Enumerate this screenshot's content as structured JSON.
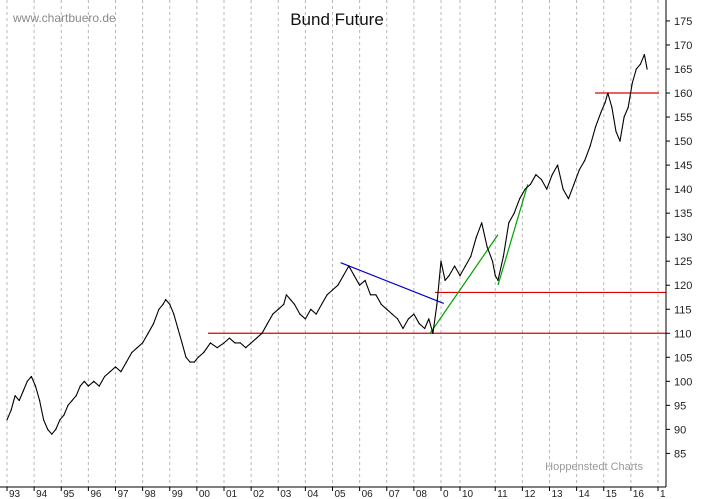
{
  "chart_data": {
    "type": "line",
    "title": "Bund Future",
    "watermark": "www.chartbuero.de",
    "source": "Hoppenstedt Charts",
    "xlabel": "",
    "ylabel": "",
    "xlim": [
      1993.0,
      2017.0
    ],
    "ylim": [
      83,
      178
    ],
    "y_ticks": [
      85,
      90,
      95,
      100,
      105,
      110,
      115,
      120,
      125,
      130,
      135,
      140,
      145,
      150,
      155,
      160,
      165,
      170,
      175
    ],
    "x_ticks": [
      {
        "x": 1993.0,
        "label": "93"
      },
      {
        "x": 1994.0,
        "label": "94"
      },
      {
        "x": 1995.0,
        "label": "95"
      },
      {
        "x": 1996.0,
        "label": "96"
      },
      {
        "x": 1997.0,
        "label": "97"
      },
      {
        "x": 1998.0,
        "label": "98"
      },
      {
        "x": 1999.0,
        "label": "99"
      },
      {
        "x": 2000.0,
        "label": "00"
      },
      {
        "x": 2001.0,
        "label": "01"
      },
      {
        "x": 2002.0,
        "label": "02"
      },
      {
        "x": 2003.0,
        "label": "03"
      },
      {
        "x": 2004.0,
        "label": "04"
      },
      {
        "x": 2005.0,
        "label": "05"
      },
      {
        "x": 2006.0,
        "label": "06"
      },
      {
        "x": 2007.0,
        "label": "07"
      },
      {
        "x": 2008.0,
        "label": "08"
      },
      {
        "x": 2009.0,
        "label": "0"
      },
      {
        "x": 2009.7,
        "label": "10"
      },
      {
        "x": 2011.0,
        "label": "11"
      },
      {
        "x": 2012.0,
        "label": "12"
      },
      {
        "x": 2013.0,
        "label": "13"
      },
      {
        "x": 2014.0,
        "label": "14"
      },
      {
        "x": 2015.0,
        "label": "15"
      },
      {
        "x": 2016.0,
        "label": "16"
      },
      {
        "x": 2017.0,
        "label": "1"
      }
    ],
    "grid": "vertical-dashed",
    "colors": {
      "price": "#000000",
      "support": "#e00000",
      "downtrend": "#0000cc",
      "uptrend": "#00a000",
      "grid": "#b8b8b8"
    },
    "series": [
      {
        "x": [
          1993.0,
          1993.15,
          1993.3,
          1993.45,
          1993.6,
          1993.75,
          1993.9,
          1994.05,
          1994.2,
          1994.35,
          1994.5,
          1994.65,
          1994.8,
          1994.95,
          1995.1,
          1995.25,
          1995.4,
          1995.55,
          1995.7,
          1995.85,
          1996.0,
          1996.2,
          1996.4,
          1996.6,
          1996.8,
          1997.0,
          1997.2,
          1997.4,
          1997.6,
          1997.8,
          1998.0,
          1998.2,
          1998.4,
          1998.6,
          1998.75,
          1998.85,
          1999.0,
          1999.15,
          1999.3,
          1999.45,
          1999.6,
          1999.75,
          1999.9,
          2000.05,
          2000.25,
          2000.5,
          2000.75,
          2001.0,
          2001.2,
          2001.4,
          2001.6,
          2001.8,
          2002.0,
          2002.2,
          2002.4,
          2002.6,
          2002.8,
          2003.0,
          2003.2,
          2003.3,
          2003.45,
          2003.6,
          2003.8,
          2004.0,
          2004.2,
          2004.4,
          2004.6,
          2004.8,
          2005.0,
          2005.2,
          2005.4,
          2005.6,
          2005.8,
          2006.0,
          2006.2,
          2006.4,
          2006.6,
          2006.8,
          2007.0,
          2007.2,
          2007.4,
          2007.6,
          2007.8,
          2008.0,
          2008.2,
          2008.4,
          2008.55,
          2008.7,
          2008.85,
          2009.0,
          2009.15,
          2009.3,
          2009.5,
          2009.7,
          2009.9,
          2010.1,
          2010.3,
          2010.5,
          2010.7,
          2010.9,
          2011.0,
          2011.1,
          2011.3,
          2011.5,
          2011.7,
          2011.9,
          2012.1,
          2012.3,
          2012.5,
          2012.7,
          2012.9,
          2013.1,
          2013.3,
          2013.5,
          2013.7,
          2013.9,
          2014.1,
          2014.3,
          2014.5,
          2014.7,
          2014.9,
          2015.05,
          2015.15,
          2015.3,
          2015.45,
          2015.6,
          2015.75,
          2015.9,
          2016.05,
          2016.2,
          2016.35,
          2016.5,
          2016.6
        ],
        "y": [
          92,
          94,
          97,
          96,
          98,
          100,
          101,
          99,
          96,
          92,
          90,
          89,
          90,
          92,
          93,
          95,
          96,
          97,
          99,
          100,
          99,
          100,
          99,
          101,
          102,
          103,
          102,
          104,
          106,
          107,
          108,
          110,
          112,
          115,
          116,
          117,
          116,
          114,
          111,
          108,
          105,
          104,
          104,
          105,
          106,
          108,
          107,
          108,
          109,
          108,
          108,
          107,
          108,
          109,
          110,
          112,
          114,
          115,
          116,
          118,
          117,
          116,
          114,
          113,
          115,
          114,
          116,
          118,
          119,
          120,
          122,
          124,
          122,
          120,
          121,
          118,
          118,
          116,
          115,
          114,
          113,
          111,
          113,
          114,
          112,
          111,
          113,
          110,
          116,
          125,
          121,
          122,
          124,
          122,
          124,
          126,
          130,
          133,
          128,
          125,
          122,
          121,
          126,
          133,
          135,
          138,
          140,
          141,
          143,
          142,
          140,
          143,
          145,
          140,
          138,
          141,
          144,
          146,
          149,
          153,
          156,
          158,
          160,
          157,
          152,
          150,
          155,
          157,
          162,
          165,
          166,
          168,
          165
        ]
      }
    ],
    "support_lines": [
      110,
      118.5,
      160
    ],
    "trendlines": [
      {
        "kind": "downtrend",
        "from": [
          2005.3,
          124.7
        ],
        "to": [
          2009.1,
          116.2
        ]
      },
      {
        "kind": "uptrend",
        "from": [
          2008.6,
          110
        ],
        "to": [
          2011.1,
          130.5
        ]
      },
      {
        "kind": "uptrend",
        "from": [
          2011.1,
          120
        ],
        "to": [
          2012.2,
          141
        ]
      }
    ]
  }
}
